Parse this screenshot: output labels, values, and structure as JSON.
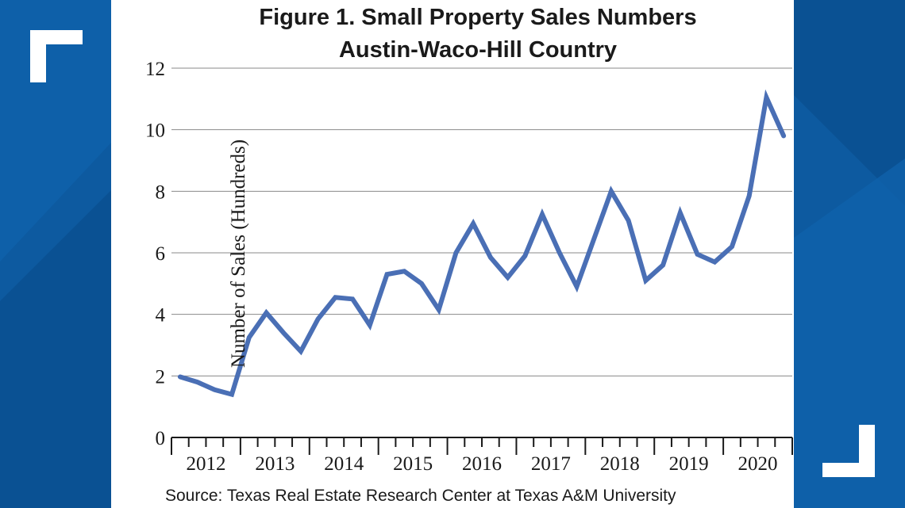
{
  "chart_data": {
    "type": "line",
    "title": "Figure 1. Small Property Sales Numbers",
    "subtitle": "Austin-Waco-Hill Country",
    "xlabel": "",
    "ylabel": "Number of Sales (Hundreds)",
    "ylim": [
      0,
      12
    ],
    "yticks": [
      "0",
      "2",
      "4",
      "6",
      "8",
      "10",
      "12"
    ],
    "x_categories": [
      "2012",
      "2013",
      "2014",
      "2015",
      "2016",
      "2017",
      "2018",
      "2019",
      "2020"
    ],
    "x_quarters": [
      "2012Q1",
      "2012Q2",
      "2012Q3",
      "2012Q4",
      "2013Q1",
      "2013Q2",
      "2013Q3",
      "2013Q4",
      "2014Q1",
      "2014Q2",
      "2014Q3",
      "2014Q4",
      "2015Q1",
      "2015Q2",
      "2015Q3",
      "2015Q4",
      "2016Q1",
      "2016Q2",
      "2016Q3",
      "2016Q4",
      "2017Q1",
      "2017Q2",
      "2017Q3",
      "2017Q4",
      "2018Q1",
      "2018Q2",
      "2018Q3",
      "2018Q4",
      "2019Q1",
      "2019Q2",
      "2019Q3",
      "2019Q4",
      "2020Q1",
      "2020Q2",
      "2020Q3",
      "2020Q4"
    ],
    "values": [
      1.97,
      1.8,
      1.55,
      1.4,
      3.25,
      4.05,
      3.4,
      2.8,
      3.85,
      4.55,
      4.5,
      3.65,
      5.3,
      5.4,
      5.0,
      4.15,
      6.0,
      6.95,
      5.85,
      5.2,
      5.9,
      7.25,
      6.0,
      4.9,
      6.45,
      8.0,
      7.05,
      5.1,
      5.6,
      7.3,
      5.95,
      5.7,
      6.2,
      7.85,
      11.05,
      9.8
    ],
    "grid": true,
    "line_color": "#4a6fb5",
    "source": "Source: Texas Real Estate Research Center at Texas A&M University"
  },
  "colors": {
    "background": "#0d5aa0",
    "panel": "#ffffff",
    "corner_marks": "#ffffff"
  },
  "decor": {
    "corner_top_left": "corner-bracket-icon",
    "corner_bottom_right": "corner-bracket-icon"
  }
}
